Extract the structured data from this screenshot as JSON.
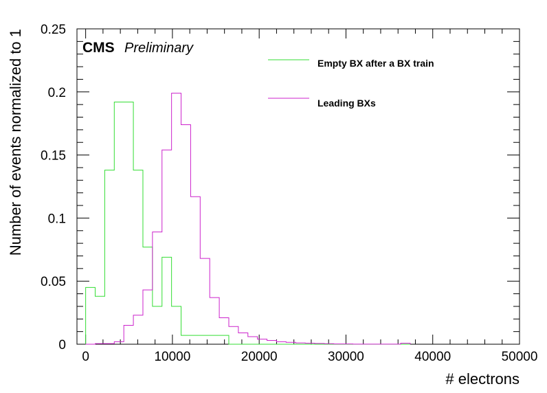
{
  "chart_data": {
    "type": "histogram",
    "label_main": "CMS",
    "label_sub": "Preliminary",
    "xlabel": "# electrons",
    "ylabel": "Number of events normalized to 1",
    "xlim": [
      -1000,
      50000
    ],
    "ylim": [
      0,
      0.25
    ],
    "x_ticks": [
      0,
      10000,
      20000,
      30000,
      40000,
      50000
    ],
    "y_ticks": [
      0,
      0.05,
      0.1,
      0.15,
      0.2,
      0.25
    ],
    "x_tick_labels": [
      "0",
      "10000",
      "20000",
      "30000",
      "40000",
      "50000"
    ],
    "y_tick_labels": [
      "0",
      "0.05",
      "0.1",
      "0.15",
      "0.2",
      "0.25"
    ],
    "grid": false,
    "legend_position": "top-right",
    "bin_edges": [
      0,
      1100,
      2200,
      3300,
      4400,
      5500,
      6600,
      7700,
      8800,
      9900,
      11000,
      12100,
      13200,
      14300,
      15400,
      16500,
      17600,
      18700,
      19800,
      20900,
      22000,
      23100,
      24200,
      25300,
      26400,
      27500,
      28600,
      29700,
      30800,
      31900,
      33000,
      34100,
      35200,
      36300,
      37400
    ],
    "series": [
      {
        "name": "Empty BX after a BX train",
        "color": "#33dd33",
        "values": [
          0.045,
          0.038,
          0.138,
          0.192,
          0.192,
          0.138,
          0.077,
          0.03,
          0.069,
          0.03,
          0.007,
          0.007,
          0.007,
          0.007,
          0.007,
          0.0,
          0.0,
          0.0,
          0.0,
          0.0,
          0.0,
          0.0,
          0.0,
          0.0,
          0.0,
          0.0,
          0.0,
          0.0,
          0.0,
          0.0,
          0.0,
          0.0,
          0.0,
          0.0
        ]
      },
      {
        "name": "Leading BXs",
        "color": "#cc22cc",
        "values": [
          0.0,
          0.0005,
          0.0005,
          0.002,
          0.015,
          0.023,
          0.043,
          0.089,
          0.154,
          0.199,
          0.174,
          0.117,
          0.068,
          0.037,
          0.021,
          0.014,
          0.009,
          0.006,
          0.004,
          0.003,
          0.002,
          0.0015,
          0.001,
          0.0008,
          0.0006,
          0.0004,
          0.0002,
          0.0002,
          0.0001,
          0.0001,
          0.0001,
          0.0001,
          0.0001,
          0.0008
        ]
      }
    ]
  }
}
